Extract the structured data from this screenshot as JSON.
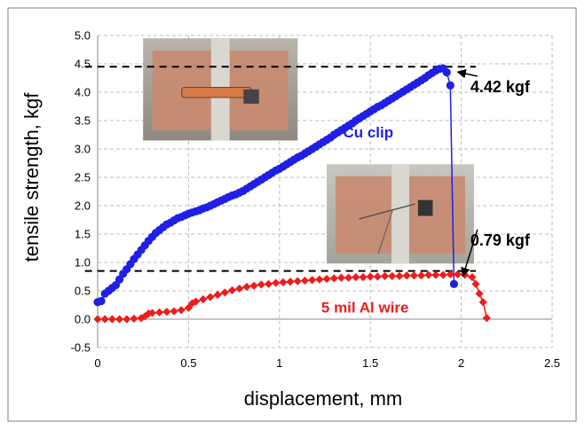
{
  "chart_data": {
    "type": "scatter",
    "xlabel": "displacement, mm",
    "ylabel": "tensile strength, kgf",
    "xlim": [
      0,
      2.5
    ],
    "ylim": [
      -0.5,
      5.0
    ],
    "x_ticks": [
      "0",
      "0.5",
      "1",
      "1.5",
      "2",
      "2.5"
    ],
    "y_ticks": [
      "-0.5",
      "0.0",
      "0.5",
      "1.0",
      "1.5",
      "2.0",
      "2.5",
      "3.0",
      "3.5",
      "4.0",
      "4.5",
      "5.0"
    ],
    "grid": true,
    "series": [
      {
        "name": "Cu clip",
        "color": "#1f1fe6",
        "marker": "circle",
        "points": [
          [
            0.0,
            0.3
          ],
          [
            0.02,
            0.32
          ],
          [
            0.04,
            0.45
          ],
          [
            0.06,
            0.5
          ],
          [
            0.08,
            0.55
          ],
          [
            0.1,
            0.6
          ],
          [
            0.12,
            0.7
          ],
          [
            0.14,
            0.8
          ],
          [
            0.16,
            0.88
          ],
          [
            0.18,
            0.97
          ],
          [
            0.2,
            1.06
          ],
          [
            0.22,
            1.14
          ],
          [
            0.24,
            1.22
          ],
          [
            0.26,
            1.3
          ],
          [
            0.28,
            1.38
          ],
          [
            0.3,
            1.45
          ],
          [
            0.32,
            1.52
          ],
          [
            0.34,
            1.57
          ],
          [
            0.36,
            1.62
          ],
          [
            0.38,
            1.67
          ],
          [
            0.4,
            1.7
          ],
          [
            0.42,
            1.74
          ],
          [
            0.44,
            1.78
          ],
          [
            0.46,
            1.8
          ],
          [
            0.48,
            1.83
          ],
          [
            0.5,
            1.86
          ],
          [
            0.52,
            1.88
          ],
          [
            0.54,
            1.9
          ],
          [
            0.56,
            1.92
          ],
          [
            0.58,
            1.95
          ],
          [
            0.6,
            1.97
          ],
          [
            0.62,
            2.0
          ],
          [
            0.64,
            2.03
          ],
          [
            0.66,
            2.06
          ],
          [
            0.68,
            2.09
          ],
          [
            0.7,
            2.12
          ],
          [
            0.72,
            2.15
          ],
          [
            0.74,
            2.18
          ],
          [
            0.76,
            2.2
          ],
          [
            0.78,
            2.23
          ],
          [
            0.8,
            2.26
          ],
          [
            0.82,
            2.3
          ],
          [
            0.84,
            2.34
          ],
          [
            0.86,
            2.38
          ],
          [
            0.88,
            2.42
          ],
          [
            0.9,
            2.46
          ],
          [
            0.92,
            2.5
          ],
          [
            0.94,
            2.54
          ],
          [
            0.96,
            2.58
          ],
          [
            0.98,
            2.62
          ],
          [
            1.0,
            2.65
          ],
          [
            1.02,
            2.69
          ],
          [
            1.04,
            2.73
          ],
          [
            1.06,
            2.77
          ],
          [
            1.08,
            2.81
          ],
          [
            1.1,
            2.85
          ],
          [
            1.12,
            2.88
          ],
          [
            1.14,
            2.92
          ],
          [
            1.16,
            2.96
          ],
          [
            1.18,
            3.0
          ],
          [
            1.2,
            3.04
          ],
          [
            1.22,
            3.08
          ],
          [
            1.24,
            3.12
          ],
          [
            1.26,
            3.16
          ],
          [
            1.28,
            3.2
          ],
          [
            1.3,
            3.25
          ],
          [
            1.32,
            3.29
          ],
          [
            1.34,
            3.33
          ],
          [
            1.36,
            3.37
          ],
          [
            1.38,
            3.41
          ],
          [
            1.4,
            3.45
          ],
          [
            1.42,
            3.5
          ],
          [
            1.44,
            3.54
          ],
          [
            1.46,
            3.58
          ],
          [
            1.48,
            3.62
          ],
          [
            1.5,
            3.66
          ],
          [
            1.52,
            3.7
          ],
          [
            1.54,
            3.74
          ],
          [
            1.56,
            3.77
          ],
          [
            1.58,
            3.81
          ],
          [
            1.6,
            3.85
          ],
          [
            1.62,
            3.89
          ],
          [
            1.64,
            3.93
          ],
          [
            1.66,
            3.97
          ],
          [
            1.68,
            4.01
          ],
          [
            1.7,
            4.05
          ],
          [
            1.72,
            4.09
          ],
          [
            1.74,
            4.13
          ],
          [
            1.76,
            4.17
          ],
          [
            1.78,
            4.21
          ],
          [
            1.8,
            4.25
          ],
          [
            1.82,
            4.3
          ],
          [
            1.84,
            4.34
          ],
          [
            1.86,
            4.38
          ],
          [
            1.88,
            4.41
          ],
          [
            1.9,
            4.42
          ],
          [
            1.92,
            4.35
          ],
          [
            1.94,
            4.12
          ],
          [
            1.96,
            0.62
          ]
        ]
      },
      {
        "name": "5 mil Al wire",
        "color": "#ee1c1c",
        "marker": "diamond",
        "points": [
          [
            0.0,
            0.0
          ],
          [
            0.04,
            0.0
          ],
          [
            0.08,
            0.0
          ],
          [
            0.12,
            0.0
          ],
          [
            0.16,
            0.0
          ],
          [
            0.2,
            0.01
          ],
          [
            0.24,
            0.02
          ],
          [
            0.26,
            0.05
          ],
          [
            0.28,
            0.1
          ],
          [
            0.3,
            0.11
          ],
          [
            0.34,
            0.12
          ],
          [
            0.38,
            0.13
          ],
          [
            0.42,
            0.14
          ],
          [
            0.46,
            0.16
          ],
          [
            0.5,
            0.2
          ],
          [
            0.52,
            0.28
          ],
          [
            0.54,
            0.31
          ],
          [
            0.58,
            0.35
          ],
          [
            0.62,
            0.39
          ],
          [
            0.66,
            0.43
          ],
          [
            0.7,
            0.47
          ],
          [
            0.74,
            0.51
          ],
          [
            0.78,
            0.54
          ],
          [
            0.82,
            0.57
          ],
          [
            0.86,
            0.59
          ],
          [
            0.9,
            0.61
          ],
          [
            0.94,
            0.62
          ],
          [
            0.98,
            0.64
          ],
          [
            1.02,
            0.65
          ],
          [
            1.06,
            0.66
          ],
          [
            1.1,
            0.67
          ],
          [
            1.14,
            0.68
          ],
          [
            1.18,
            0.69
          ],
          [
            1.22,
            0.7
          ],
          [
            1.26,
            0.71
          ],
          [
            1.3,
            0.72
          ],
          [
            1.34,
            0.73
          ],
          [
            1.38,
            0.73
          ],
          [
            1.42,
            0.74
          ],
          [
            1.46,
            0.74
          ],
          [
            1.5,
            0.75
          ],
          [
            1.54,
            0.75
          ],
          [
            1.58,
            0.76
          ],
          [
            1.62,
            0.76
          ],
          [
            1.66,
            0.76
          ],
          [
            1.7,
            0.77
          ],
          [
            1.74,
            0.77
          ],
          [
            1.78,
            0.77
          ],
          [
            1.82,
            0.78
          ],
          [
            1.86,
            0.78
          ],
          [
            1.9,
            0.78
          ],
          [
            1.94,
            0.79
          ],
          [
            1.98,
            0.79
          ],
          [
            2.02,
            0.78
          ],
          [
            2.06,
            0.74
          ],
          [
            2.08,
            0.62
          ],
          [
            2.1,
            0.45
          ],
          [
            2.12,
            0.3
          ],
          [
            2.14,
            0.02
          ]
        ]
      }
    ],
    "reference_lines": [
      {
        "y": 4.45,
        "x_start": -0.07,
        "x_end": 2.08,
        "style": "dashed",
        "color": "#000000"
      },
      {
        "y": 0.85,
        "x_start": -0.07,
        "x_end": 2.08,
        "style": "dashed",
        "color": "#000000"
      }
    ],
    "annotations": [
      {
        "text": "4.42 kgf",
        "x": 2.05,
        "y": 4.0,
        "color": "#000000",
        "arrow_to": [
          1.95,
          4.42
        ]
      },
      {
        "text": "0.79 kgf",
        "x": 2.05,
        "y": 1.3,
        "color": "#000000",
        "arrow_to": [
          1.98,
          0.82
        ]
      },
      {
        "text": "Cu clip",
        "x": 1.35,
        "y": 3.2,
        "color": "#1f1fe6"
      },
      {
        "text": "5 mil Al wire",
        "x": 1.23,
        "y": 0.12,
        "color": "#ee1c1c"
      }
    ],
    "inset_photos": [
      {
        "subject": "copper-clip-sample-photo",
        "x_range": [
          0.25,
          1.1
        ],
        "y_range": [
          3.15,
          4.95
        ]
      },
      {
        "subject": "aluminum-wire-sample-photo",
        "x_range": [
          1.26,
          2.07
        ],
        "y_range": [
          0.98,
          2.73
        ]
      }
    ]
  }
}
